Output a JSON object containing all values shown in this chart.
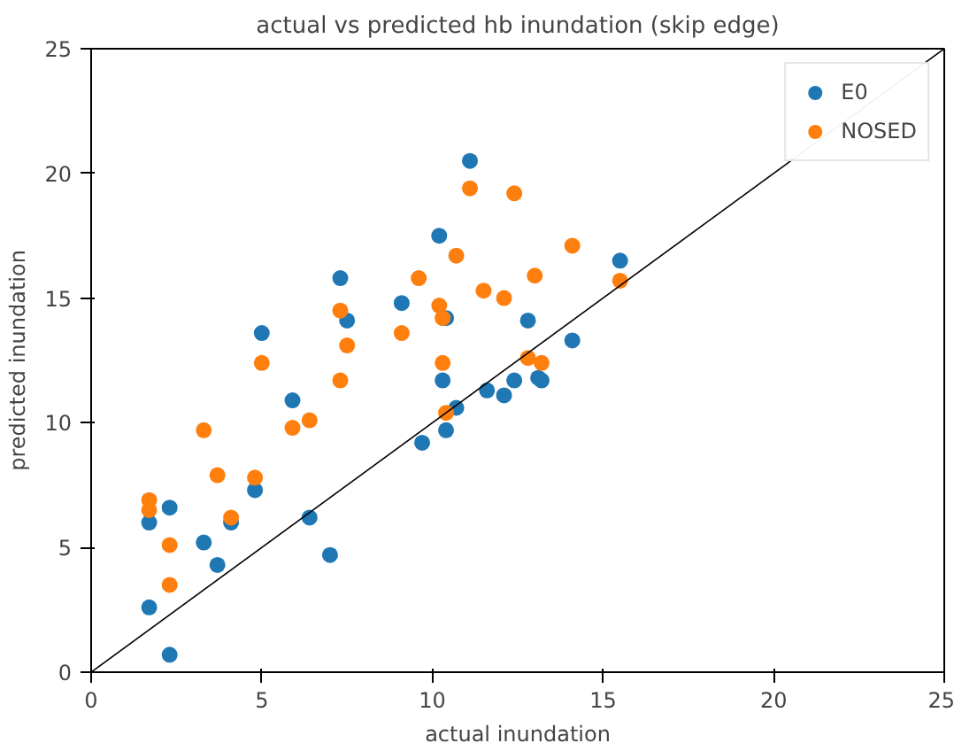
{
  "chart_data": {
    "type": "scatter",
    "title": "actual vs predicted hb inundation (skip edge)",
    "xlabel": "actual inundation",
    "ylabel": "predicted inundation",
    "xlim": [
      0,
      25
    ],
    "ylim": [
      0,
      25
    ],
    "xticks": [
      0,
      5,
      10,
      15,
      20,
      25
    ],
    "yticks": [
      0,
      5,
      10,
      15,
      20,
      25
    ],
    "grid": false,
    "legend": "top right",
    "marker": "circle",
    "series": [
      {
        "name": "E0",
        "color": "#1f77b4",
        "x": [
          1.7,
          1.7,
          2.3,
          2.3,
          3.3,
          3.7,
          4.1,
          4.8,
          5.0,
          5.9,
          6.4,
          7.0,
          7.3,
          7.5,
          9.1,
          9.7,
          10.2,
          10.3,
          10.4,
          10.4,
          10.7,
          11.1,
          11.6,
          12.1,
          12.4,
          12.8,
          13.1,
          13.2,
          14.1,
          15.5
        ],
        "values": [
          2.6,
          6.0,
          6.6,
          0.7,
          5.2,
          4.3,
          6.0,
          7.3,
          13.6,
          10.9,
          6.2,
          4.7,
          15.8,
          14.1,
          14.8,
          9.2,
          17.5,
          11.7,
          9.7,
          14.2,
          10.6,
          20.5,
          11.3,
          11.1,
          11.7,
          14.1,
          11.8,
          11.7,
          13.3,
          16.5
        ]
      },
      {
        "name": "NOSED",
        "color": "#ff7f0e",
        "x": [
          1.7,
          1.7,
          2.3,
          2.3,
          3.3,
          3.7,
          4.1,
          4.8,
          5.0,
          5.9,
          6.4,
          7.3,
          7.3,
          7.5,
          9.1,
          9.6,
          10.2,
          10.3,
          10.3,
          10.4,
          10.7,
          11.1,
          11.5,
          12.1,
          12.4,
          12.8,
          13.0,
          13.2,
          14.1,
          15.5
        ],
        "values": [
          6.9,
          6.5,
          5.1,
          3.5,
          9.7,
          7.9,
          6.2,
          7.8,
          12.4,
          9.8,
          10.1,
          11.7,
          14.5,
          13.1,
          13.6,
          15.8,
          14.7,
          14.2,
          12.4,
          10.4,
          16.7,
          19.4,
          15.3,
          15.0,
          19.2,
          12.6,
          15.9,
          12.4,
          17.1,
          15.7
        ]
      },
      {
        "type": "line",
        "marker": "none",
        "color": "#000000",
        "x": [
          0,
          25
        ],
        "values": [
          0,
          25
        ]
      }
    ]
  }
}
